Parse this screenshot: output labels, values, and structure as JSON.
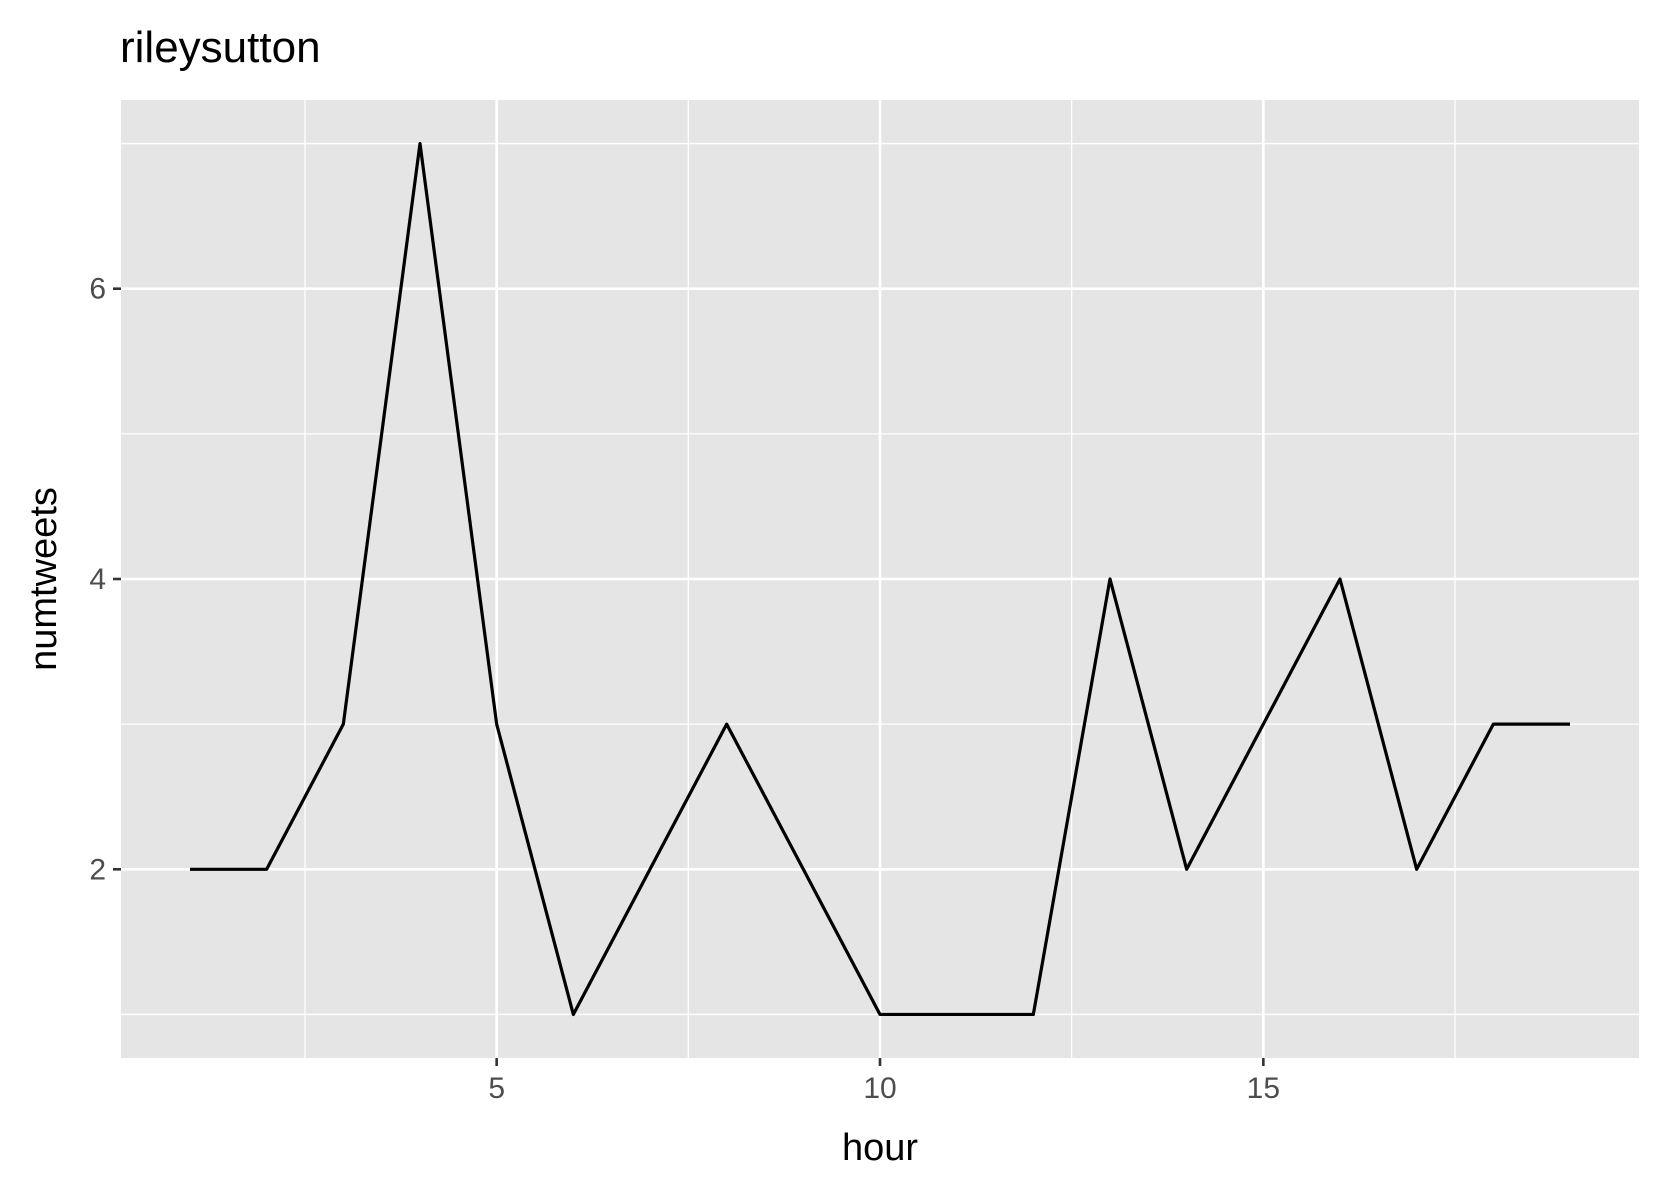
{
  "chart_data": {
    "type": "line",
    "title": "rileysutton",
    "xlabel": "hour",
    "ylabel": "numtweets",
    "x": [
      1,
      2,
      3,
      4,
      5,
      6,
      7,
      8,
      9,
      10,
      11,
      12,
      13,
      14,
      15,
      16,
      17,
      18,
      19
    ],
    "series": [
      {
        "values": [
          2,
          2,
          3,
          7,
          3,
          1,
          2,
          3,
          2,
          1,
          1,
          1,
          4,
          2,
          3,
          4,
          2,
          3,
          3
        ]
      }
    ],
    "xlim": [
      0.1,
      19.9
    ],
    "ylim": [
      0.7,
      7.3
    ],
    "x_ticks": [
      5,
      10,
      15
    ],
    "x_minor_ticks": [
      2.5,
      7.5,
      12.5,
      17.5
    ],
    "y_ticks": [
      2,
      4,
      6
    ],
    "y_minor_ticks": [
      1,
      3,
      5,
      7
    ],
    "x_tick_labels": [
      "5",
      "10",
      "15"
    ],
    "y_tick_labels": [
      "2",
      "4",
      "6"
    ],
    "grid": true,
    "legend": "none",
    "colors": {
      "panel": "#e5e5e5",
      "grid": "#ffffff",
      "line": "#000000",
      "tick_text": "#4d4d4d"
    }
  }
}
